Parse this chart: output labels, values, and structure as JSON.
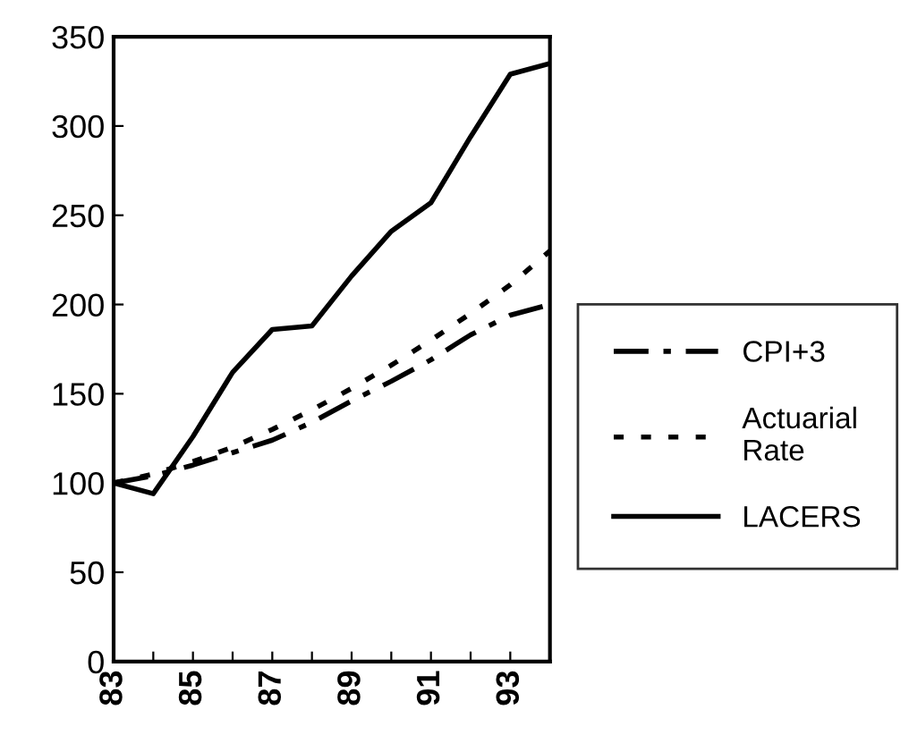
{
  "chart_data": {
    "type": "line",
    "categories": [
      "83",
      null,
      "85",
      null,
      "87",
      null,
      "89",
      null,
      "91",
      null,
      "93",
      null
    ],
    "series": [
      {
        "name": "CPI+3",
        "color": "#000000",
        "line_style": "dashed",
        "values": [
          100,
          104,
          110,
          117,
          124,
          134,
          146,
          157,
          169,
          183,
          194,
          200
        ]
      },
      {
        "name": "Actuarial\nRate",
        "color": "#000000",
        "line_style": "dotted",
        "values": [
          100,
          105,
          112,
          120,
          130,
          141,
          153,
          166,
          180,
          195,
          211,
          230
        ]
      },
      {
        "name": "LACERS",
        "color": "#000000",
        "line_style": "solid",
        "values": [
          100,
          94,
          126,
          162,
          186,
          188,
          216,
          241,
          257,
          294,
          329,
          335
        ]
      }
    ],
    "ylim": [
      0,
      350
    ],
    "yticks": [
      0,
      50,
      100,
      150,
      200,
      250,
      300,
      350
    ],
    "grid": false,
    "legend": "right",
    "marker": "none"
  }
}
